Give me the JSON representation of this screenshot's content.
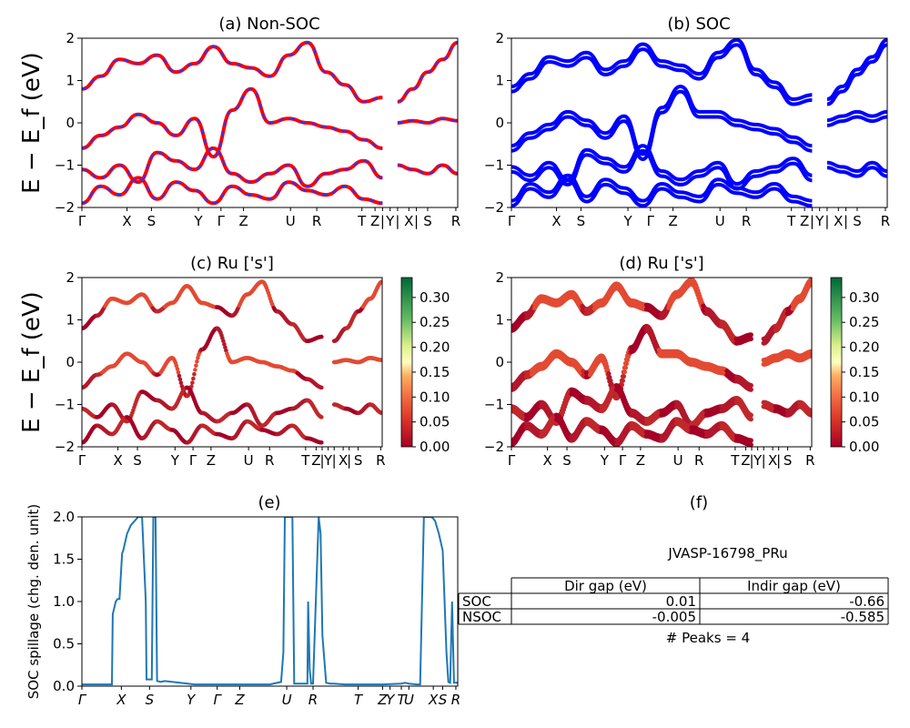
{
  "colors": {
    "nonsoc_a": "#ff0000",
    "nonsoc_b": "#3333ff",
    "soc": "#0000ff",
    "spillage": "#1f77b4"
  },
  "chart_data": [
    {
      "id": "a",
      "type": "line",
      "title": "(a) Non-SOC",
      "ylabel": "E − E_f (eV)",
      "ylim": [
        -2,
        2
      ],
      "ytick_labels": [
        "−2",
        "−1",
        "0",
        "1",
        "2"
      ],
      "kpath_labels": [
        "Γ",
        "X",
        "S",
        "Y",
        "Γ",
        "Z",
        "U",
        "R",
        "T",
        "Z",
        "|",
        "Y",
        "|",
        "X",
        "|",
        "S",
        "R"
      ],
      "series": [
        {
          "x": [
            0,
            0.05,
            0.1,
            0.15,
            0.2,
            0.25,
            0.3,
            0.35,
            0.4,
            0.45,
            0.5,
            0.55,
            0.6,
            0.65,
            0.7,
            0.75,
            0.8
          ],
          "y": [
            0.8,
            1.1,
            1.5,
            1.4,
            1.6,
            1.2,
            1.4,
            1.8,
            1.4,
            1.3,
            1.1,
            1.6,
            1.9,
            1.2,
            0.9,
            0.5,
            0.6
          ]
        },
        {
          "x": [
            0,
            0.05,
            0.1,
            0.15,
            0.2,
            0.25,
            0.3,
            0.35,
            0.4,
            0.45,
            0.5,
            0.55,
            0.6,
            0.65,
            0.7,
            0.75,
            0.8
          ],
          "y": [
            -0.6,
            -0.3,
            -0.1,
            0.2,
            0.0,
            -0.3,
            0.1,
            -0.8,
            0.3,
            0.8,
            0.0,
            0.1,
            0.0,
            -0.1,
            -0.2,
            -0.4,
            -0.6
          ]
        },
        {
          "x": [
            0,
            0.05,
            0.1,
            0.15,
            0.2,
            0.25,
            0.3,
            0.35,
            0.4,
            0.45,
            0.5,
            0.55,
            0.6,
            0.65,
            0.7,
            0.75,
            0.8
          ],
          "y": [
            -1.1,
            -1.3,
            -1.0,
            -1.4,
            -0.7,
            -0.9,
            -1.1,
            -0.6,
            -1.2,
            -1.4,
            -1.2,
            -1.0,
            -1.5,
            -1.2,
            -1.1,
            -0.9,
            -1.3
          ]
        },
        {
          "x": [
            0,
            0.05,
            0.1,
            0.15,
            0.2,
            0.25,
            0.3,
            0.35,
            0.4,
            0.45,
            0.5,
            0.55,
            0.6,
            0.65,
            0.7,
            0.75,
            0.8
          ],
          "y": [
            -1.9,
            -1.5,
            -1.7,
            -1.3,
            -1.8,
            -1.4,
            -1.6,
            -1.9,
            -1.5,
            -1.7,
            -1.8,
            -1.4,
            -1.6,
            -1.7,
            -1.5,
            -1.8,
            -1.9
          ]
        },
        {
          "x": [
            0.84,
            0.88,
            0.92,
            0.96,
            1.0
          ],
          "y": [
            0.5,
            0.8,
            1.2,
            1.5,
            1.9
          ]
        },
        {
          "x": [
            0.84,
            0.88,
            0.92,
            0.96,
            1.0
          ],
          "y": [
            -1.0,
            -1.1,
            -1.2,
            -1.0,
            -1.2
          ]
        },
        {
          "x": [
            0.84,
            0.88,
            0.92,
            0.96,
            1.0
          ],
          "y": [
            0.0,
            0.05,
            0.0,
            0.1,
            0.05
          ]
        }
      ]
    },
    {
      "id": "b",
      "type": "line",
      "title": "(b) SOC",
      "ylim": [
        -2,
        2
      ],
      "ytick_labels": [
        "−2",
        "−1",
        "0",
        "1",
        "2"
      ],
      "kpath_labels": [
        "Γ",
        "X",
        "S",
        "Y",
        "Γ",
        "Z",
        "U",
        "R",
        "T",
        "Z",
        "|",
        "Y",
        "|",
        "X",
        "|",
        "S",
        "R"
      ],
      "series": [
        {
          "x": [
            0,
            0.05,
            0.1,
            0.15,
            0.2,
            0.25,
            0.3,
            0.35,
            0.4,
            0.45,
            0.5,
            0.55,
            0.6,
            0.65,
            0.7,
            0.75,
            0.8
          ],
          "y": [
            0.8,
            1.1,
            1.5,
            1.4,
            1.6,
            1.2,
            1.4,
            1.8,
            1.4,
            1.3,
            1.1,
            1.6,
            1.9,
            1.2,
            0.9,
            0.5,
            0.6
          ]
        },
        {
          "x": [
            0,
            0.05,
            0.1,
            0.15,
            0.2,
            0.25,
            0.3,
            0.35,
            0.4,
            0.45,
            0.5,
            0.55,
            0.6,
            0.65,
            0.7,
            0.75,
            0.8
          ],
          "y": [
            -0.6,
            -0.3,
            -0.1,
            0.2,
            0.0,
            -0.3,
            0.1,
            -0.8,
            0.3,
            0.8,
            0.2,
            0.2,
            0.0,
            -0.1,
            -0.2,
            -0.4,
            -0.6
          ]
        },
        {
          "x": [
            0,
            0.05,
            0.1,
            0.15,
            0.2,
            0.25,
            0.3,
            0.35,
            0.4,
            0.45,
            0.5,
            0.55,
            0.6,
            0.65,
            0.7,
            0.75,
            0.8
          ],
          "y": [
            -1.1,
            -1.3,
            -1.0,
            -1.4,
            -0.7,
            -0.9,
            -1.1,
            -0.6,
            -1.2,
            -1.4,
            -1.2,
            -1.0,
            -1.5,
            -1.2,
            -1.1,
            -0.9,
            -1.3
          ]
        },
        {
          "x": [
            0,
            0.05,
            0.1,
            0.15,
            0.2,
            0.25,
            0.3,
            0.35,
            0.4,
            0.45,
            0.5,
            0.55,
            0.6,
            0.65,
            0.7,
            0.75,
            0.8
          ],
          "y": [
            -1.9,
            -1.5,
            -1.7,
            -1.3,
            -1.8,
            -1.4,
            -1.6,
            -1.9,
            -1.5,
            -1.7,
            -1.8,
            -1.4,
            -1.6,
            -1.7,
            -1.5,
            -1.8,
            -1.9
          ]
        },
        {
          "x": [
            0.84,
            0.88,
            0.92,
            0.96,
            1.0
          ],
          "y": [
            0.5,
            0.8,
            1.2,
            1.5,
            1.9
          ]
        },
        {
          "x": [
            0.84,
            0.88,
            0.92,
            0.96,
            1.0
          ],
          "y": [
            -1.0,
            -1.1,
            -1.2,
            -1.0,
            -1.2
          ]
        },
        {
          "x": [
            0.84,
            0.88,
            0.92,
            0.96,
            1.0
          ],
          "y": [
            0.0,
            0.1,
            0.2,
            0.1,
            0.2
          ]
        }
      ]
    },
    {
      "id": "c",
      "type": "scatter",
      "title": "(c)  Ru ['s']",
      "ylabel": "E − E_f (eV)",
      "ylim": [
        -2,
        2
      ],
      "ytick_labels": [
        "−2",
        "−1",
        "0",
        "1",
        "2"
      ],
      "kpath_labels": [
        "Γ",
        "X",
        "S",
        "Y",
        "Γ",
        "Z",
        "U",
        "R",
        "T",
        "Z",
        "|",
        "Y",
        "|",
        "X",
        "|",
        "S",
        "R"
      ],
      "colorbar": {
        "ticks": [
          "0.00",
          "0.05",
          "0.10",
          "0.15",
          "0.20",
          "0.25",
          "0.30"
        ],
        "range": [
          0,
          0.34
        ]
      }
    },
    {
      "id": "d",
      "type": "scatter",
      "title": "(d) Ru ['s']",
      "ylim": [
        -2,
        2
      ],
      "ytick_labels": [
        "−2",
        "−1",
        "0",
        "1",
        "2"
      ],
      "kpath_labels": [
        "Γ",
        "X",
        "S",
        "Y",
        "Γ",
        "Z",
        "U",
        "R",
        "T",
        "Z",
        "|",
        "Y",
        "|",
        "X",
        "|",
        "S",
        "R"
      ],
      "colorbar": {
        "ticks": [
          "0.00",
          "0.05",
          "0.10",
          "0.15",
          "0.20",
          "0.25",
          "0.30"
        ],
        "range": [
          0,
          0.34
        ]
      }
    },
    {
      "id": "e",
      "type": "line",
      "title": "(e)",
      "ylabel": "SOC spillage (chg. den. unit)",
      "ylim": [
        0,
        2
      ],
      "ytick_labels": [
        "0.0",
        "0.5",
        "1.0",
        "1.5",
        "2.0"
      ],
      "kpath_labels": [
        "Γ",
        "X",
        "S",
        "Y",
        "Γ",
        "Z",
        "U",
        "R",
        "T",
        "Z",
        "Y",
        "T",
        "U",
        "X",
        "S",
        "R"
      ],
      "x": [
        0,
        0.08,
        0.082,
        0.09,
        0.095,
        0.1,
        0.107,
        0.11,
        0.12,
        0.13,
        0.15,
        0.16,
        0.17,
        0.172,
        0.18,
        0.186,
        0.19,
        0.196,
        0.2,
        0.21,
        0.22,
        0.3,
        0.4,
        0.5,
        0.53,
        0.536,
        0.54,
        0.55,
        0.56,
        0.565,
        0.57,
        0.6,
        0.602,
        0.606,
        0.61,
        0.615,
        0.63,
        0.635,
        0.64,
        0.65,
        0.66,
        0.665,
        0.67,
        0.7,
        0.8,
        0.85,
        0.86,
        0.87,
        0.89,
        0.9,
        0.91,
        0.93,
        0.935,
        0.94,
        0.95,
        0.96,
        0.97,
        0.975,
        0.98,
        0.985,
        0.99,
        1.0
      ],
      "y": [
        0.02,
        0.02,
        0.85,
        1.0,
        1.03,
        1.03,
        1.57,
        1.6,
        1.8,
        1.9,
        2.0,
        2.0,
        1.0,
        0.08,
        0.08,
        0.08,
        2.0,
        2.0,
        0.06,
        0.05,
        0.06,
        0.02,
        0.02,
        0.02,
        0.05,
        0.4,
        2.0,
        2.0,
        2.0,
        0.03,
        0.03,
        0.03,
        1.0,
        0.2,
        0.03,
        0.03,
        2.0,
        1.8,
        0.6,
        0.04,
        0.03,
        0.03,
        0.03,
        0.02,
        0.02,
        0.03,
        0.04,
        0.03,
        0.02,
        0.02,
        2.0,
        2.0,
        1.98,
        1.95,
        1.8,
        1.6,
        0.4,
        0.05,
        0.04,
        1.0,
        0.04,
        0.04
      ]
    },
    {
      "id": "f",
      "type": "table",
      "title": "(f)",
      "subtitle": "JVASP-16798_PRu",
      "columns": [
        "",
        "Dir gap (eV)",
        "Indir gap (eV)"
      ],
      "rows": [
        [
          "SOC",
          "0.01",
          "-0.66"
        ],
        [
          "NSOC",
          "-0.005",
          "-0.585"
        ]
      ],
      "footer": "# Peaks = 4"
    }
  ]
}
